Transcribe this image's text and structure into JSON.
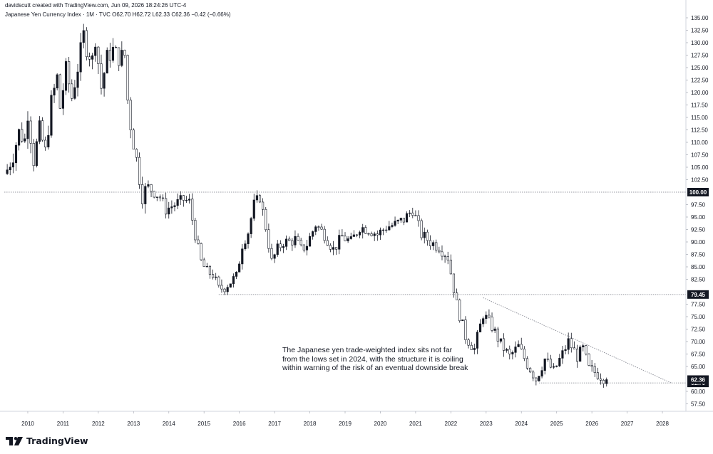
{
  "header": {
    "created_by": "davidscutt created with TradingView.com, Jun 09, 2026 18:24:26 UTC-4",
    "symbol_line": "Japanese Yen Currency Index · 1M · TVC  O62.70  H62.72  L62.33  C62.36  −0.42 (−0.66%)"
  },
  "annotation": "The Japanese yen trade-weighted index sits not far from the lows set in 2024, with the structure it is coiling within warning of the risk of an eventual downside break",
  "brand": {
    "name": "TradingView",
    "icon": "tradingview-logo-icon"
  },
  "colors": {
    "up_candle": "#131722",
    "down_candle": "#ffffff",
    "candle_border": "#131722",
    "last_price_tag": "#131722",
    "level_tag": "#131722",
    "level_line": "#787b86",
    "trendline": "#787b86"
  },
  "chart_data": {
    "type": "candlestick",
    "timeframe": "1M",
    "xlim": [
      "2009-05",
      "2028-09"
    ],
    "ylim": [
      56.0,
      136.0
    ],
    "y_ticks": [
      "135.00",
      "132.50",
      "130.00",
      "127.50",
      "125.00",
      "122.50",
      "120.00",
      "117.50",
      "115.00",
      "112.50",
      "110.00",
      "107.50",
      "105.00",
      "102.50",
      "97.50",
      "95.00",
      "92.50",
      "90.00",
      "87.50",
      "85.00",
      "82.50",
      "77.50",
      "75.00",
      "72.50",
      "70.00",
      "67.50",
      "65.00",
      "60.00",
      "57.50"
    ],
    "x_ticks": [
      "2010",
      "2011",
      "2012",
      "2013",
      "2014",
      "2015",
      "2016",
      "2017",
      "2018",
      "2019",
      "2020",
      "2021",
      "2022",
      "2023",
      "2024",
      "2025",
      "2026",
      "2027",
      "2028"
    ],
    "grid": false,
    "horizontal_levels": [
      {
        "label": "100.00",
        "value": 100.0,
        "from": "2009-05"
      },
      {
        "label": "79.45",
        "value": 79.45,
        "from": "2015-06"
      },
      {
        "label": "61.70",
        "value": 61.7,
        "from": "2024-07"
      }
    ],
    "trendline": {
      "points": [
        [
          "2022-12",
          78.8
        ],
        [
          "2028-04",
          61.7
        ]
      ]
    },
    "last_price": {
      "label": "62.36",
      "value": 62.36
    },
    "candle_path": [
      [
        "2009-06",
        104.5
      ],
      [
        "2009-08",
        107.5
      ],
      [
        "2009-10",
        112.0
      ],
      [
        "2009-12",
        110.5
      ],
      [
        "2010-01",
        116.0
      ],
      [
        "2010-03",
        106.5
      ],
      [
        "2010-05",
        112.5
      ],
      [
        "2010-07",
        108.0
      ],
      [
        "2010-09",
        118.0
      ],
      [
        "2010-11",
        123.0
      ],
      [
        "2010-12",
        117.0
      ],
      [
        "2011-02",
        124.5
      ],
      [
        "2011-04",
        119.0
      ],
      [
        "2011-06",
        125.0
      ],
      [
        "2011-08",
        131.5
      ],
      [
        "2011-09",
        129.0
      ],
      [
        "2011-11",
        126.5
      ],
      [
        "2011-12",
        131.0
      ],
      [
        "2012-02",
        121.0
      ],
      [
        "2012-04",
        127.0
      ],
      [
        "2012-06",
        128.5
      ],
      [
        "2012-08",
        127.0
      ],
      [
        "2012-10",
        127.5
      ],
      [
        "2012-11",
        118.5
      ],
      [
        "2012-12",
        113.5
      ],
      [
        "2013-02",
        106.5
      ],
      [
        "2013-04",
        99.5
      ],
      [
        "2013-06",
        101.0
      ],
      [
        "2013-08",
        100.0
      ],
      [
        "2013-10",
        99.0
      ],
      [
        "2013-12",
        96.5
      ],
      [
        "2014-03",
        97.5
      ],
      [
        "2014-06",
        98.5
      ],
      [
        "2014-08",
        98.0
      ],
      [
        "2014-09",
        94.5
      ],
      [
        "2014-11",
        88.5
      ],
      [
        "2014-12",
        86.0
      ],
      [
        "2015-02",
        84.0
      ],
      [
        "2015-04",
        83.5
      ],
      [
        "2015-06",
        80.5
      ],
      [
        "2015-08",
        81.0
      ],
      [
        "2015-10",
        82.0
      ],
      [
        "2015-12",
        83.0
      ],
      [
        "2016-02",
        89.5
      ],
      [
        "2016-04",
        92.0
      ],
      [
        "2016-06",
        97.5
      ],
      [
        "2016-08",
        99.0
      ],
      [
        "2016-10",
        93.0
      ],
      [
        "2016-12",
        86.0
      ],
      [
        "2017-02",
        88.5
      ],
      [
        "2017-04",
        90.0
      ],
      [
        "2017-06",
        90.0
      ],
      [
        "2017-08",
        90.5
      ],
      [
        "2017-10",
        88.5
      ],
      [
        "2017-12",
        89.5
      ],
      [
        "2018-03",
        93.5
      ],
      [
        "2018-06",
        91.5
      ],
      [
        "2018-09",
        88.5
      ],
      [
        "2018-12",
        91.0
      ],
      [
        "2019-03",
        90.0
      ],
      [
        "2019-06",
        93.0
      ],
      [
        "2019-09",
        92.5
      ],
      [
        "2019-12",
        91.5
      ],
      [
        "2020-03",
        93.0
      ],
      [
        "2020-06",
        93.5
      ],
      [
        "2020-09",
        94.5
      ],
      [
        "2020-12",
        96.5
      ],
      [
        "2021-03",
        91.5
      ],
      [
        "2021-06",
        90.0
      ],
      [
        "2021-09",
        89.0
      ],
      [
        "2021-12",
        87.0
      ],
      [
        "2022-03",
        77.5
      ],
      [
        "2022-06",
        71.0
      ],
      [
        "2022-09",
        68.5
      ],
      [
        "2022-12",
        75.5
      ],
      [
        "2023-03",
        73.0
      ],
      [
        "2023-06",
        69.5
      ],
      [
        "2023-09",
        67.0
      ],
      [
        "2023-12",
        69.0
      ],
      [
        "2024-03",
        65.5
      ],
      [
        "2024-06",
        62.5
      ],
      [
        "2024-09",
        66.5
      ],
      [
        "2024-12",
        64.0
      ],
      [
        "2025-03",
        67.5
      ],
      [
        "2025-05",
        70.0
      ],
      [
        "2025-08",
        67.0
      ],
      [
        "2025-10",
        68.5
      ],
      [
        "2025-12",
        64.5
      ],
      [
        "2026-03",
        63.5
      ],
      [
        "2026-06",
        62.36
      ]
    ]
  }
}
